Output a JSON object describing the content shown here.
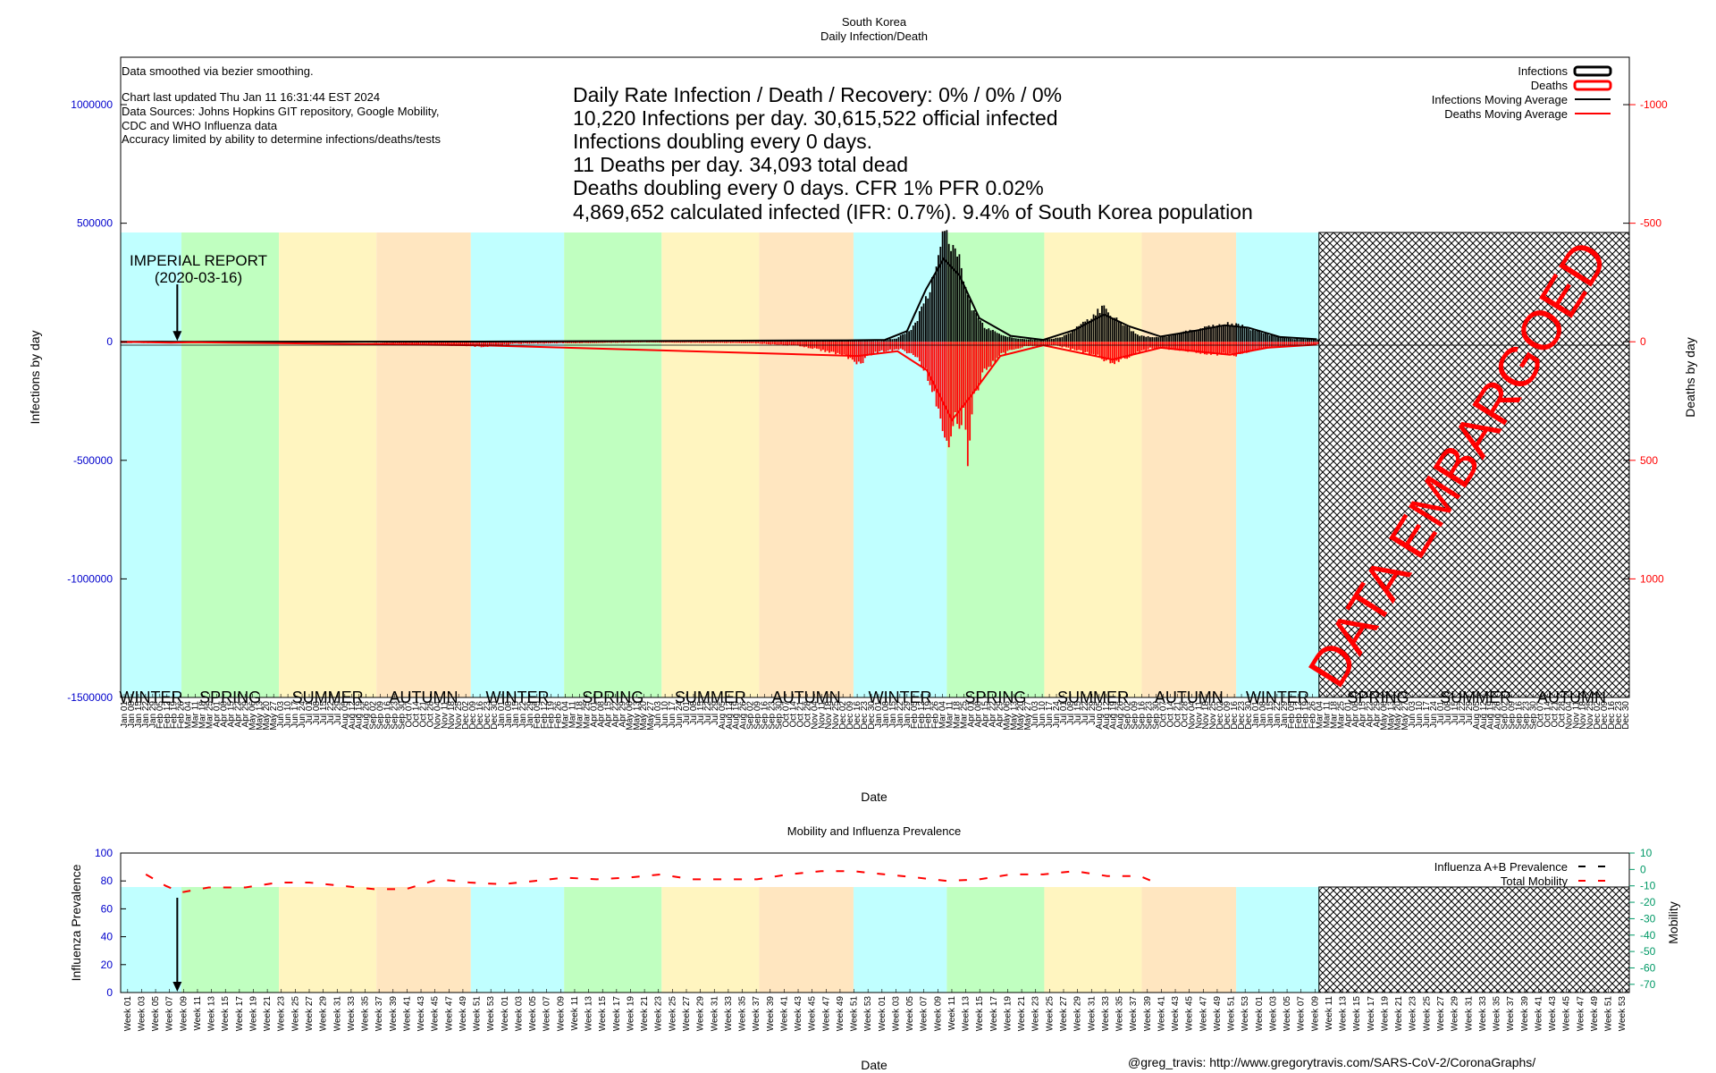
{
  "title": {
    "country": "South Korea",
    "subtitle": "Daily Infection/Death"
  },
  "notes": {
    "smoothing": "Data smoothed via bezier smoothing.",
    "updated": "Chart last updated Thu Jan 11 16:31:44 EST 2024",
    "sources_1": "Data Sources: Johns Hopkins GIT repository, Google Mobility,",
    "sources_2": "CDC and WHO Influenza data",
    "accuracy": "Accuracy limited by ability to determine infections/deaths/tests"
  },
  "stats": [
    "Daily Rate Infection / Death / Recovery: 0% / 0% / 0%",
    "10,220 Infections per day.  30,615,522 official infected",
    "Infections doubling every 0 days.",
    "11 Deaths per day.  34,093 total dead",
    "Deaths doubling every 0 days.  CFR 1%  PFR 0.02%",
    "4,869,652 calculated infected (IFR: 0.7%).  9.4% of South Korea population"
  ],
  "annotation": {
    "line1": "IMPERIAL REPORT",
    "line2": "(2020-03-16)",
    "date": "2020-03-16"
  },
  "embargo": {
    "label": "DATA EMBARGOED"
  },
  "legend_main": [
    {
      "label": "Infections",
      "color": "#000000",
      "kind": "box"
    },
    {
      "label": "Deaths",
      "color": "#ff0000",
      "kind": "box"
    },
    {
      "label": "Infections Moving Average",
      "color": "#000000",
      "kind": "line"
    },
    {
      "label": "Deaths Moving Average",
      "color": "#ff0000",
      "kind": "line"
    }
  ],
  "legend_mobility": [
    {
      "label": "Influenza A+B Prevalence",
      "color": "#000000",
      "kind": "dash"
    },
    {
      "label": "Total Mobility",
      "color": "#ff0000",
      "kind": "dash"
    }
  ],
  "seasons": [
    {
      "label": "WINTER",
      "start": "2020-01-22",
      "end": "2020-03-20",
      "color": "#c0ffff"
    },
    {
      "label": "SPRING",
      "start": "2020-03-20",
      "end": "2020-06-21",
      "color": "#c0ffc0"
    },
    {
      "label": "SUMMER",
      "start": "2020-06-21",
      "end": "2020-09-22",
      "color": "#fff5c0"
    },
    {
      "label": "AUTUMN",
      "start": "2020-09-22",
      "end": "2020-12-21",
      "color": "#ffe6c0"
    },
    {
      "label": "WINTER",
      "start": "2020-12-21",
      "end": "2021-03-20",
      "color": "#c0ffff"
    },
    {
      "label": "SPRING",
      "start": "2021-03-20",
      "end": "2021-06-21",
      "color": "#c0ffc0"
    },
    {
      "label": "SUMMER",
      "start": "2021-06-21",
      "end": "2021-09-22",
      "color": "#fff5c0"
    },
    {
      "label": "AUTUMN",
      "start": "2021-09-22",
      "end": "2021-12-21",
      "color": "#ffe6c0"
    },
    {
      "label": "WINTER",
      "start": "2021-12-21",
      "end": "2022-03-20",
      "color": "#c0ffff"
    },
    {
      "label": "SPRING",
      "start": "2022-03-20",
      "end": "2022-06-21",
      "color": "#c0ffc0"
    },
    {
      "label": "SUMMER",
      "start": "2022-06-21",
      "end": "2022-09-22",
      "color": "#fff5c0"
    },
    {
      "label": "AUTUMN",
      "start": "2022-09-22",
      "end": "2022-12-21",
      "color": "#ffe6c0"
    },
    {
      "label": "WINTER",
      "start": "2022-12-21",
      "end": "2023-03-10",
      "color": "#c0ffff"
    },
    {
      "label": "SPRING",
      "start": "2023-03-20",
      "end": "2023-06-21",
      "color": "embargo"
    },
    {
      "label": "SUMMER",
      "start": "2023-06-21",
      "end": "2023-09-22",
      "color": "embargo"
    },
    {
      "label": "AUTUMN",
      "start": "2023-09-22",
      "end": "2023-12-21",
      "color": "embargo"
    }
  ],
  "chart_data": [
    {
      "type": "bar",
      "title": "South Korea Daily Infection/Death",
      "xlabel": "Date",
      "ylabel": "Infections by day",
      "y2label": "Deaths by day",
      "x_range": [
        "2020-01-22",
        "2023-12-31"
      ],
      "ylim": [
        -1500000,
        1200000
      ],
      "y2lim": [
        1500,
        -1200
      ],
      "yticks": [
        1000000,
        500000,
        0,
        -500000,
        -1000000,
        -1500000
      ],
      "y2ticks": [
        -1000,
        -500,
        0,
        500,
        1000
      ],
      "embargo_start": "2023-03-10",
      "x_tick_labels": [
        "Jan 01",
        "Jan 08",
        "Jan 15",
        "Jan 22",
        "Jan 29",
        "Feb 05",
        "Feb 12",
        "Feb 19",
        "Feb 26",
        "Mar 04",
        "Mar 11",
        "Mar 18",
        "Mar 25",
        "Apr 01",
        "Apr 08",
        "Apr 15",
        "Apr 22",
        "Apr 29",
        "May 06",
        "May 13",
        "May 20",
        "May 27",
        "Jun 03",
        "Jun 10",
        "Jun 17",
        "Jun 24",
        "Jul 01",
        "Jul 08",
        "Jul 15",
        "Jul 22",
        "Jul 29",
        "Aug 05",
        "Aug 12",
        "Aug 19",
        "Aug 26",
        "Sep 02",
        "Sep 09",
        "Sep 16",
        "Sep 23",
        "Sep 30",
        "Oct 07",
        "Oct 14",
        "Oct 21",
        "Oct 28",
        "Nov 04",
        "Nov 11",
        "Nov 18",
        "Nov 25",
        "Dec 02",
        "Dec 09",
        "Dec 16",
        "Dec 23",
        "Dec 30"
      ],
      "series": [
        {
          "name": "Infections",
          "kind": "bars_up",
          "color": "#000000",
          "points": [
            [
              "2020-02-20",
              200
            ],
            [
              "2020-03-01",
              700
            ],
            [
              "2020-03-10",
              300
            ],
            [
              "2020-04-15",
              50
            ],
            [
              "2020-06-01",
              50
            ],
            [
              "2020-08-27",
              440
            ],
            [
              "2020-09-15",
              150
            ],
            [
              "2020-12-25",
              1200
            ],
            [
              "2021-01-15",
              500
            ],
            [
              "2021-04-15",
              700
            ],
            [
              "2021-07-25",
              1800
            ],
            [
              "2021-09-25",
              3000
            ],
            [
              "2021-11-15",
              2500
            ],
            [
              "2021-12-15",
              7500
            ],
            [
              "2022-01-15",
              4000
            ],
            [
              "2022-01-31",
              17000
            ],
            [
              "2022-02-15",
              60000
            ],
            [
              "2022-02-25",
              160000
            ],
            [
              "2022-03-05",
              260000
            ],
            [
              "2022-03-10",
              330000
            ],
            [
              "2022-03-17",
              600000
            ],
            [
              "2022-03-22",
              430000
            ],
            [
              "2022-03-28",
              480000
            ],
            [
              "2022-04-05",
              280000
            ],
            [
              "2022-04-15",
              140000
            ],
            [
              "2022-04-25",
              70000
            ],
            [
              "2022-05-10",
              35000
            ],
            [
              "2022-05-20",
              20000
            ],
            [
              "2022-06-15",
              8000
            ],
            [
              "2022-07-05",
              19000
            ],
            [
              "2022-07-15",
              40000
            ],
            [
              "2022-07-25",
              80000
            ],
            [
              "2022-08-05",
              105000
            ],
            [
              "2022-08-17",
              180000
            ],
            [
              "2022-08-25",
              120000
            ],
            [
              "2022-09-05",
              80000
            ],
            [
              "2022-09-20",
              30000
            ],
            [
              "2022-10-05",
              20000
            ],
            [
              "2022-10-20",
              30000
            ],
            [
              "2022-11-01",
              45000
            ],
            [
              "2022-11-15",
              60000
            ],
            [
              "2022-11-30",
              75000
            ],
            [
              "2022-12-15",
              85000
            ],
            [
              "2022-12-25",
              75000
            ],
            [
              "2023-01-05",
              60000
            ],
            [
              "2023-01-20",
              35000
            ],
            [
              "2023-02-05",
              18000
            ],
            [
              "2023-02-20",
              12000
            ],
            [
              "2023-03-08",
              10220
            ]
          ]
        },
        {
          "name": "Deaths",
          "kind": "bars_down",
          "color": "#ff0000",
          "points": [
            [
              "2020-03-05",
              6
            ],
            [
              "2020-03-20",
              5
            ],
            [
              "2020-05-01",
              1
            ],
            [
              "2020-09-01",
              2
            ],
            [
              "2020-12-20",
              20
            ],
            [
              "2021-01-01",
              25
            ],
            [
              "2021-02-01",
              10
            ],
            [
              "2021-06-01",
              3
            ],
            [
              "2021-09-15",
              7
            ],
            [
              "2021-11-01",
              20
            ],
            [
              "2021-12-10",
              60
            ],
            [
              "2021-12-25",
              105
            ],
            [
              "2022-01-15",
              45
            ],
            [
              "2022-02-05",
              35
            ],
            [
              "2022-02-20",
              80
            ],
            [
              "2022-03-01",
              150
            ],
            [
              "2022-03-10",
              300
            ],
            [
              "2022-03-17",
              400
            ],
            [
              "2022-03-22",
              470
            ],
            [
              "2022-03-26",
              380
            ],
            [
              "2022-03-31",
              420
            ],
            [
              "2022-04-05",
              360
            ],
            [
              "2022-04-10",
              608
            ],
            [
              "2022-04-15",
              250
            ],
            [
              "2022-04-25",
              150
            ],
            [
              "2022-05-10",
              60
            ],
            [
              "2022-06-01",
              25
            ],
            [
              "2022-07-01",
              15
            ],
            [
              "2022-08-05",
              60
            ],
            [
              "2022-08-25",
              100
            ],
            [
              "2022-09-10",
              70
            ],
            [
              "2022-10-01",
              30
            ],
            [
              "2022-11-01",
              40
            ],
            [
              "2022-11-20",
              55
            ],
            [
              "2022-12-20",
              65
            ],
            [
              "2023-01-05",
              45
            ],
            [
              "2023-01-25",
              25
            ],
            [
              "2023-02-20",
              15
            ],
            [
              "2023-03-08",
              11
            ]
          ]
        },
        {
          "name": "Infections Moving Average",
          "kind": "line",
          "color": "#000000",
          "points": [
            [
              "2020-01-22",
              0
            ],
            [
              "2020-03-01",
              500
            ],
            [
              "2020-03-20",
              100
            ],
            [
              "2021-01-01",
              800
            ],
            [
              "2021-12-15",
              6000
            ],
            [
              "2022-01-20",
              8000
            ],
            [
              "2022-02-10",
              45000
            ],
            [
              "2022-02-28",
              220000
            ],
            [
              "2022-03-17",
              350000
            ],
            [
              "2022-04-01",
              280000
            ],
            [
              "2022-04-20",
              100000
            ],
            [
              "2022-05-20",
              25000
            ],
            [
              "2022-06-20",
              8000
            ],
            [
              "2022-07-20",
              50000
            ],
            [
              "2022-08-17",
              115000
            ],
            [
              "2022-09-10",
              65000
            ],
            [
              "2022-10-10",
              22000
            ],
            [
              "2022-11-10",
              45000
            ],
            [
              "2022-12-10",
              70000
            ],
            [
              "2023-01-01",
              60000
            ],
            [
              "2023-02-01",
              20000
            ],
            [
              "2023-03-08",
              10500
            ]
          ]
        },
        {
          "name": "Deaths Moving Average",
          "kind": "line",
          "color": "#ff0000",
          "points": [
            [
              "2020-01-22",
              0
            ],
            [
              "2020-03-10",
              4
            ],
            [
              "2020-04-01",
              2
            ],
            [
              "2021-01-01",
              15
            ],
            [
              "2021-12-25",
              60
            ],
            [
              "2022-02-01",
              40
            ],
            [
              "2022-03-01",
              120
            ],
            [
              "2022-03-25",
              330
            ],
            [
              "2022-04-10",
              240
            ],
            [
              "2022-05-10",
              60
            ],
            [
              "2022-06-20",
              15
            ],
            [
              "2022-08-25",
              75
            ],
            [
              "2022-10-10",
              25
            ],
            [
              "2022-12-15",
              55
            ],
            [
              "2023-01-20",
              25
            ],
            [
              "2023-03-08",
              12
            ]
          ]
        }
      ]
    },
    {
      "type": "line",
      "title": "Mobility and Influenza Prevalence",
      "xlabel": "Date",
      "ylabel": "Influenza Prevalence",
      "y2label": "Mobility",
      "ylim": [
        0,
        100
      ],
      "y2lim": [
        -75,
        10
      ],
      "yticks": [
        100,
        80,
        60,
        40,
        20,
        0
      ],
      "y2ticks": [
        10,
        0,
        -10,
        -20,
        -30,
        -40,
        -50,
        -60,
        -70
      ],
      "x_tick_labels": [
        "Week 01",
        "Week 03",
        "Week 05",
        "Week 07",
        "Week 09",
        "Week 11",
        "Week 13",
        "Week 15",
        "Week 17",
        "Week 19",
        "Week 21",
        "Week 23",
        "Week 25",
        "Week 27",
        "Week 29",
        "Week 31",
        "Week 33",
        "Week 35",
        "Week 37",
        "Week 39",
        "Week 41",
        "Week 43",
        "Week 45",
        "Week 47",
        "Week 49",
        "Week 51",
        "Week 53"
      ],
      "series": [
        {
          "name": "Total Mobility",
          "color": "#ff0000",
          "points": [
            [
              "2020-02-15",
              -3
            ],
            [
              "2020-03-05",
              -10
            ],
            [
              "2020-03-20",
              -14
            ],
            [
              "2020-04-15",
              -11
            ],
            [
              "2020-05-20",
              -11
            ],
            [
              "2020-06-20",
              -8
            ],
            [
              "2020-07-20",
              -8
            ],
            [
              "2020-08-20",
              -10
            ],
            [
              "2020-09-20",
              -12
            ],
            [
              "2020-10-20",
              -12
            ],
            [
              "2020-11-20",
              -6
            ],
            [
              "2020-12-20",
              -8
            ],
            [
              "2021-01-20",
              -9
            ],
            [
              "2021-02-20",
              -7
            ],
            [
              "2021-03-20",
              -5
            ],
            [
              "2021-04-20",
              -6
            ],
            [
              "2021-05-20",
              -5
            ],
            [
              "2021-06-20",
              -3
            ],
            [
              "2021-07-20",
              -6
            ],
            [
              "2021-08-20",
              -6
            ],
            [
              "2021-09-20",
              -6
            ],
            [
              "2021-10-20",
              -3
            ],
            [
              "2021-11-20",
              -1
            ],
            [
              "2021-12-20",
              -1
            ],
            [
              "2022-01-20",
              -3
            ],
            [
              "2022-02-20",
              -5
            ],
            [
              "2022-03-20",
              -7
            ],
            [
              "2022-04-20",
              -6
            ],
            [
              "2022-05-20",
              -3
            ],
            [
              "2022-06-20",
              -3
            ],
            [
              "2022-07-20",
              -1
            ],
            [
              "2022-08-20",
              -4
            ],
            [
              "2022-09-20",
              -4
            ],
            [
              "2022-10-05",
              -8
            ]
          ]
        }
      ]
    }
  ],
  "axes_text": {
    "main_xlabel": "Date",
    "main_ylabel": "Infections by day",
    "main_y2label": "Deaths by day",
    "mob_title": "Mobility and Influenza Prevalence",
    "mob_xlabel": "Date",
    "mob_ylabel": "Influenza Prevalence",
    "mob_y2label": "Mobility"
  },
  "credit": "@greg_travis: http://www.gregorytravis.com/SARS-CoV-2/CoronaGraphs/"
}
